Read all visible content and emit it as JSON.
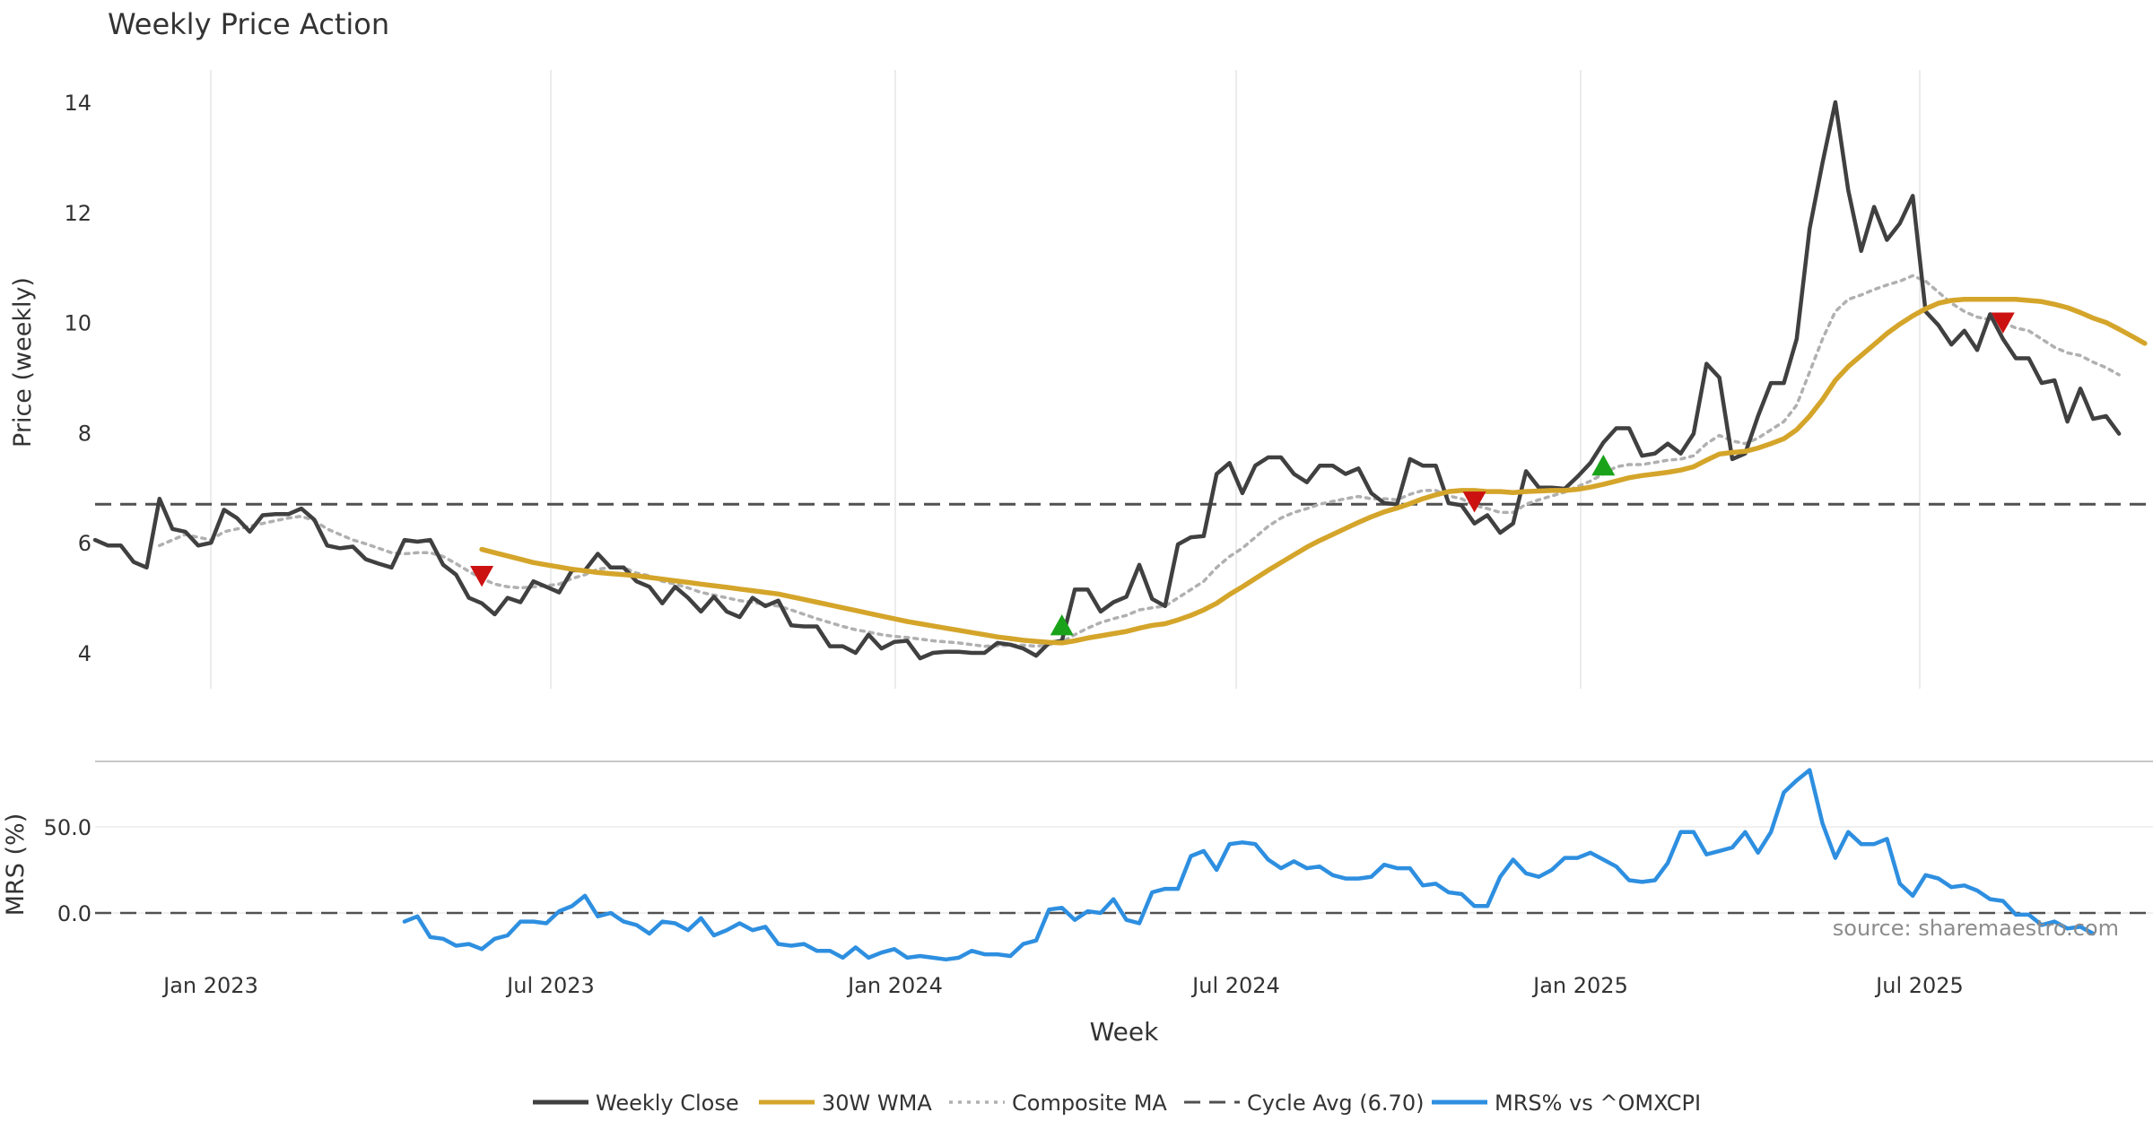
{
  "chart_data": {
    "type": "line",
    "title": "Weekly Price Action",
    "xlabel": "Week",
    "source": "source: sharemaestro.com",
    "x_tick_labels": [
      "Jan 2023",
      "Jul 2023",
      "Jan 2024",
      "Jul 2024",
      "Jan 2025",
      "Jul 2025"
    ],
    "price_panel": {
      "ylabel": "Price (weekly)",
      "ylim": [
        3.35,
        14.5
      ],
      "yticks": [
        4,
        6,
        8,
        10,
        12,
        14
      ],
      "grid": "vertical",
      "cycle_avg": 6.7,
      "series": [
        {
          "name": "Weekly Close",
          "color": "#404040",
          "style": "solid",
          "values": [
            6.05,
            5.95,
            5.95,
            5.65,
            5.55,
            6.8,
            6.25,
            6.2,
            5.95,
            6.0,
            6.6,
            6.45,
            6.2,
            6.5,
            6.52,
            6.52,
            6.62,
            6.42,
            5.95,
            5.9,
            5.93,
            5.7,
            5.62,
            5.55,
            6.05,
            6.02,
            6.05,
            5.6,
            5.42,
            5.0,
            4.9,
            4.7,
            5.0,
            4.92,
            5.3,
            5.2,
            5.1,
            5.5,
            5.5,
            5.8,
            5.55,
            5.55,
            5.3,
            5.2,
            4.9,
            5.2,
            5.0,
            4.75,
            5.02,
            4.75,
            4.65,
            5.0,
            4.85,
            4.95,
            4.5,
            4.48,
            4.48,
            4.12,
            4.12,
            4.0,
            4.33,
            4.08,
            4.2,
            4.22,
            3.9,
            4.0,
            4.02,
            4.02,
            4.0,
            4.0,
            4.18,
            4.15,
            4.08,
            3.95,
            4.18,
            4.22,
            5.15,
            5.15,
            4.75,
            4.92,
            5.02,
            5.6,
            4.98,
            4.85,
            5.97,
            6.1,
            6.12,
            7.25,
            7.45,
            6.9,
            7.4,
            7.55,
            7.55,
            7.25,
            7.1,
            7.4,
            7.4,
            7.25,
            7.35,
            6.9,
            6.72,
            6.7,
            7.52,
            7.4,
            7.4,
            6.72,
            6.68,
            6.35,
            6.5,
            6.18,
            6.35,
            7.3,
            7.0,
            7.0,
            6.98,
            7.2,
            7.45,
            7.82,
            8.08,
            8.08,
            7.58,
            7.62,
            7.8,
            7.62,
            7.98,
            9.25,
            9.0,
            7.52,
            7.62,
            8.3,
            8.9,
            8.9,
            9.7,
            11.7,
            12.9,
            14.0,
            12.4,
            11.3,
            12.1,
            11.5,
            11.8,
            12.3,
            10.2,
            9.95,
            9.6,
            9.85,
            9.5,
            10.15,
            9.7,
            9.35,
            9.35,
            8.9,
            8.95,
            8.2,
            8.8,
            8.25,
            8.3,
            7.98
          ]
        },
        {
          "name": "30W WMA",
          "color": "#d4a52a",
          "style": "solid",
          "values": [
            null,
            null,
            null,
            null,
            null,
            null,
            null,
            null,
            null,
            null,
            null,
            null,
            null,
            null,
            null,
            null,
            null,
            null,
            null,
            null,
            null,
            null,
            null,
            null,
            null,
            null,
            null,
            null,
            null,
            null,
            5.88,
            5.82,
            5.76,
            5.7,
            5.64,
            5.6,
            5.56,
            5.52,
            5.49,
            5.46,
            5.44,
            5.42,
            5.4,
            5.37,
            5.34,
            5.31,
            5.28,
            5.25,
            5.22,
            5.19,
            5.16,
            5.13,
            5.1,
            5.07,
            5.02,
            4.97,
            4.92,
            4.87,
            4.82,
            4.77,
            4.72,
            4.67,
            4.62,
            4.57,
            4.53,
            4.49,
            4.45,
            4.41,
            4.37,
            4.33,
            4.29,
            4.26,
            4.23,
            4.21,
            4.19,
            4.18,
            4.22,
            4.27,
            4.31,
            4.35,
            4.39,
            4.45,
            4.5,
            4.53,
            4.6,
            4.68,
            4.78,
            4.9,
            5.06,
            5.2,
            5.35,
            5.5,
            5.64,
            5.78,
            5.92,
            6.04,
            6.15,
            6.26,
            6.37,
            6.47,
            6.56,
            6.63,
            6.71,
            6.8,
            6.87,
            6.93,
            6.95,
            6.95,
            6.93,
            6.93,
            6.91,
            6.93,
            6.94,
            6.95,
            6.95,
            6.97,
            7.01,
            7.06,
            7.12,
            7.18,
            7.22,
            7.25,
            7.28,
            7.32,
            7.38,
            7.5,
            7.61,
            7.64,
            7.66,
            7.72,
            7.8,
            7.89,
            8.05,
            8.3,
            8.6,
            8.95,
            9.2,
            9.4,
            9.6,
            9.8,
            9.97,
            10.12,
            10.25,
            10.35,
            10.4,
            10.42,
            10.42,
            10.42,
            10.42,
            10.42,
            10.4,
            10.38,
            10.33,
            10.27,
            10.18,
            10.08,
            10.0,
            9.88,
            9.75,
            9.62
          ]
        },
        {
          "name": "Composite MA",
          "color": "#b0b0b0",
          "style": "dotted",
          "values": [
            null,
            null,
            null,
            null,
            null,
            5.95,
            6.05,
            6.15,
            6.1,
            6.05,
            6.2,
            6.25,
            6.3,
            6.35,
            6.4,
            6.45,
            6.48,
            6.4,
            6.25,
            6.15,
            6.05,
            5.98,
            5.9,
            5.82,
            5.8,
            5.82,
            5.82,
            5.75,
            5.62,
            5.48,
            5.35,
            5.25,
            5.2,
            5.18,
            5.2,
            5.22,
            5.25,
            5.35,
            5.42,
            5.52,
            5.55,
            5.55,
            5.45,
            5.4,
            5.3,
            5.25,
            5.18,
            5.1,
            5.05,
            5.0,
            4.95,
            4.92,
            4.88,
            4.85,
            4.78,
            4.7,
            4.62,
            4.55,
            4.48,
            4.42,
            4.38,
            4.33,
            4.3,
            4.28,
            4.25,
            4.22,
            4.2,
            4.18,
            4.15,
            4.12,
            4.13,
            4.14,
            4.14,
            4.12,
            4.15,
            4.2,
            4.33,
            4.45,
            4.55,
            4.62,
            4.68,
            4.78,
            4.82,
            4.85,
            5.0,
            5.15,
            5.3,
            5.55,
            5.75,
            5.9,
            6.1,
            6.3,
            6.45,
            6.55,
            6.62,
            6.7,
            6.75,
            6.8,
            6.84,
            6.8,
            6.8,
            6.78,
            6.88,
            6.95,
            6.95,
            6.85,
            6.8,
            6.68,
            6.62,
            6.55,
            6.55,
            6.7,
            6.78,
            6.85,
            6.92,
            7.02,
            7.12,
            7.25,
            7.38,
            7.42,
            7.42,
            7.46,
            7.5,
            7.52,
            7.58,
            7.8,
            7.95,
            7.85,
            7.8,
            7.9,
            8.05,
            8.2,
            8.5,
            9.1,
            9.7,
            10.2,
            10.42,
            10.5,
            10.6,
            10.68,
            10.75,
            10.85,
            10.75,
            10.55,
            10.35,
            10.2,
            10.1,
            10.05,
            10.0,
            9.9,
            9.85,
            9.7,
            9.55,
            9.45,
            9.4,
            9.28,
            9.18,
            9.05
          ]
        }
      ],
      "markers": [
        {
          "type": "sell",
          "week": 30,
          "value": 5.4,
          "color": "#cc1111"
        },
        {
          "type": "buy",
          "week": 75,
          "value": 4.5,
          "color": "#1aa31a"
        },
        {
          "type": "sell",
          "week": 107,
          "value": 6.75,
          "color": "#cc1111"
        },
        {
          "type": "buy",
          "week": 117,
          "value": 7.4,
          "color": "#1aa31a"
        },
        {
          "type": "sell",
          "week": 148,
          "value": 10.0,
          "color": "#cc1111"
        }
      ]
    },
    "mrs_panel": {
      "ylabel": "MRS (%)",
      "ylim": [
        -42,
        93
      ],
      "yticks": [
        0,
        50
      ],
      "ytick_labels": [
        "0.0",
        "50.0"
      ],
      "series": [
        {
          "name": "MRS% vs ^OMXCPI",
          "color": "#2e8fe0",
          "values": [
            null,
            null,
            null,
            null,
            null,
            null,
            null,
            null,
            null,
            null,
            null,
            null,
            null,
            null,
            null,
            null,
            null,
            null,
            null,
            null,
            null,
            null,
            null,
            null,
            -5,
            -2,
            -14,
            -15,
            -19,
            -18,
            -21,
            -15,
            -13,
            -5,
            -5,
            -6,
            1,
            4,
            10,
            -2,
            0,
            -5,
            -7,
            -12,
            -5,
            -6,
            -10,
            -3,
            -13,
            -10,
            -6,
            -10,
            -8,
            -18,
            -19,
            -18,
            -22,
            -22,
            -26,
            -20,
            -26,
            -23,
            -21,
            -26,
            -25,
            -26,
            -27,
            -26,
            -22,
            -24,
            -24,
            -25,
            -18,
            -16,
            2,
            3,
            -4,
            1,
            0,
            8,
            -4,
            -6,
            12,
            14,
            14,
            33,
            36,
            25,
            40,
            41,
            40,
            31,
            26,
            30,
            26,
            27,
            22,
            20,
            20,
            21,
            28,
            26,
            26,
            16,
            17,
            12,
            11,
            4,
            4,
            21,
            31,
            23,
            21,
            25,
            32,
            32,
            35,
            31,
            27,
            19,
            18,
            19,
            29,
            47,
            47,
            34,
            36,
            38,
            47,
            35,
            47,
            70,
            77,
            83,
            52,
            32,
            47,
            40,
            40,
            43,
            17,
            10,
            22,
            20,
            15,
            16,
            13,
            8,
            7,
            -1,
            -1,
            -7,
            -5,
            -9,
            -8,
            -12
          ]
        }
      ]
    },
    "legend": {
      "placement": "bottom-center",
      "entries": [
        {
          "name": "Weekly Close",
          "color": "#404040",
          "style": "solid"
        },
        {
          "name": "30W WMA",
          "color": "#d4a52a",
          "style": "solid"
        },
        {
          "name": "Composite MA",
          "color": "#b0b0b0",
          "style": "dotted"
        },
        {
          "name": "Cycle Avg (6.70)",
          "color": "#505050",
          "style": "dashed"
        },
        {
          "name": "MRS% vs ^OMXCPI",
          "color": "#2e8fe0",
          "style": "solid"
        }
      ]
    }
  }
}
